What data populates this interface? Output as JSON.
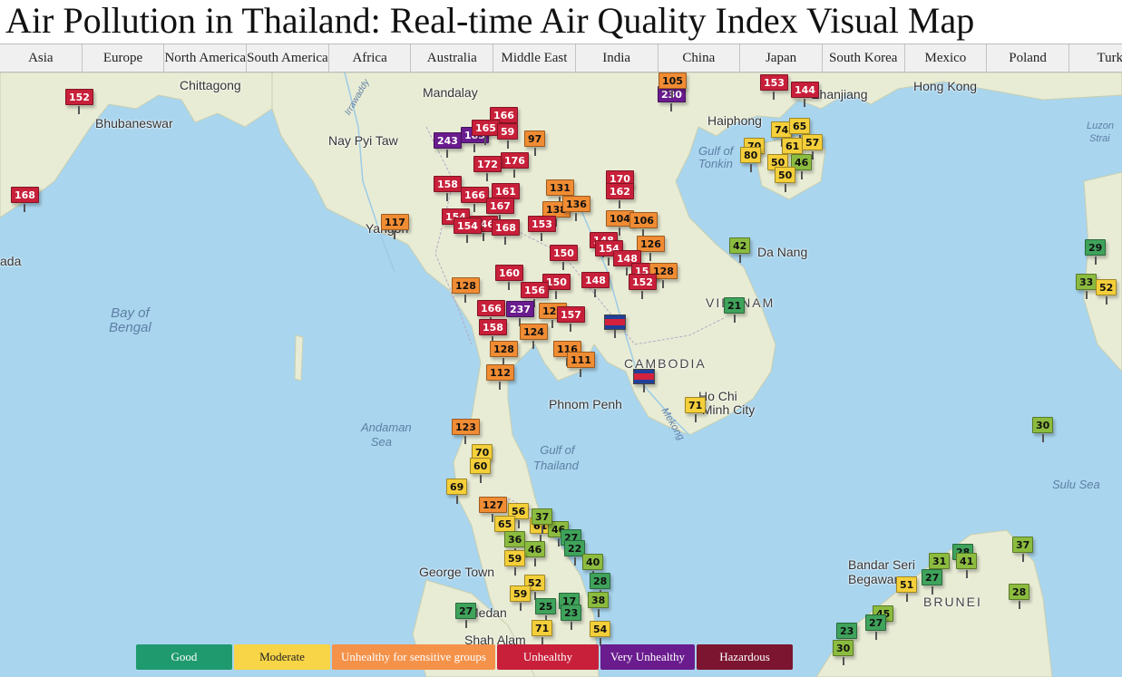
{
  "page_title": "Air Pollution in Thailand: Real-time Air Quality Index Visual Map",
  "region_tabs": [
    {
      "label": "Asia"
    },
    {
      "label": "Europe"
    },
    {
      "label": "North America"
    },
    {
      "label": "South America"
    },
    {
      "label": "Africa"
    },
    {
      "label": "Australia"
    },
    {
      "label": "Middle East"
    },
    {
      "label": "India"
    },
    {
      "label": "China"
    },
    {
      "label": "Japan"
    },
    {
      "label": "South Korea"
    },
    {
      "label": "Mexico"
    },
    {
      "label": "Poland"
    },
    {
      "label": "Turk"
    }
  ],
  "colors": {
    "good": "#3fa35b",
    "moderate": "#f4cf3a",
    "unhealthy_sensitive": "#f08c33",
    "unhealthy": "#c8203a",
    "very_unhealthy": "#6a1c8e",
    "hazardous": "#7c1530",
    "water": "#a9d5ee",
    "land": "#e9ecd6"
  },
  "place_labels": [
    {
      "text": "Chittagong",
      "kind": "city"
    },
    {
      "text": "Mandalay",
      "kind": "city"
    },
    {
      "text": "Bhubaneswar",
      "kind": "city"
    },
    {
      "text": "Nay Pyi Taw",
      "kind": "city"
    },
    {
      "text": "Yangon",
      "kind": "city"
    },
    {
      "text": "Haiphong",
      "kind": "city"
    },
    {
      "text": "Hong Kong",
      "kind": "city"
    },
    {
      "text": "Zhanjiang",
      "kind": "city"
    },
    {
      "text": "Da Nang",
      "kind": "city"
    },
    {
      "text": "VIETNAM",
      "kind": "country"
    },
    {
      "text": "CAMBODIA",
      "kind": "country"
    },
    {
      "text": "Phnom Penh",
      "kind": "city"
    },
    {
      "text": "Ho Chi Minh City",
      "kind": "city"
    },
    {
      "text": "George Town",
      "kind": "city"
    },
    {
      "text": "Medan",
      "kind": "city"
    },
    {
      "text": "Shah Alam",
      "kind": "city"
    },
    {
      "text": "Bandar Seri Begawan",
      "kind": "city"
    },
    {
      "text": "BRUNEI",
      "kind": "country"
    },
    {
      "text": "Bay of Bengal",
      "kind": "water"
    },
    {
      "text": "Andaman Sea",
      "kind": "water"
    },
    {
      "text": "Gulf of Thailand",
      "kind": "water"
    },
    {
      "text": "Gulf of Tonkin",
      "kind": "water"
    },
    {
      "text": "Sulu Sea",
      "kind": "water"
    },
    {
      "text": "Luzon Strait",
      "kind": "water"
    },
    {
      "text": "Irrawaddy",
      "kind": "water"
    },
    {
      "text": "Mekong",
      "kind": "water"
    },
    {
      "text": "ada",
      "kind": "city"
    }
  ],
  "aqi_markers": [
    {
      "value": "152",
      "level": "unhealthy"
    },
    {
      "value": "168",
      "level": "unhealthy"
    },
    {
      "value": "117",
      "level": "usg"
    },
    {
      "value": "243",
      "level": "very"
    },
    {
      "value": "185",
      "level": "very"
    },
    {
      "value": "166",
      "level": "unhealthy"
    },
    {
      "value": "165",
      "level": "unhealthy"
    },
    {
      "value": "59",
      "level": "unhealthy"
    },
    {
      "value": "97",
      "level": "usg"
    },
    {
      "value": "176",
      "level": "unhealthy"
    },
    {
      "value": "172",
      "level": "unhealthy"
    },
    {
      "value": "158",
      "level": "unhealthy"
    },
    {
      "value": "166",
      "level": "unhealthy"
    },
    {
      "value": "161",
      "level": "unhealthy"
    },
    {
      "value": "131",
      "level": "usg"
    },
    {
      "value": "170",
      "level": "unhealthy"
    },
    {
      "value": "162",
      "level": "unhealthy"
    },
    {
      "value": "154",
      "level": "unhealthy"
    },
    {
      "value": "167",
      "level": "unhealthy"
    },
    {
      "value": "138",
      "level": "usg"
    },
    {
      "value": "136",
      "level": "usg"
    },
    {
      "value": "153",
      "level": "unhealthy"
    },
    {
      "value": "146",
      "level": "unhealthy"
    },
    {
      "value": "154",
      "level": "unhealthy"
    },
    {
      "value": "168",
      "level": "unhealthy"
    },
    {
      "value": "104",
      "level": "usg"
    },
    {
      "value": "106",
      "level": "usg"
    },
    {
      "value": "126",
      "level": "usg"
    },
    {
      "value": "150",
      "level": "unhealthy"
    },
    {
      "value": "148",
      "level": "unhealthy"
    },
    {
      "value": "154",
      "level": "unhealthy"
    },
    {
      "value": "148",
      "level": "unhealthy"
    },
    {
      "value": "152",
      "level": "unhealthy"
    },
    {
      "value": "128",
      "level": "usg"
    },
    {
      "value": "160",
      "level": "unhealthy"
    },
    {
      "value": "150",
      "level": "unhealthy"
    },
    {
      "value": "148",
      "level": "unhealthy"
    },
    {
      "value": "152",
      "level": "unhealthy"
    },
    {
      "value": "128",
      "level": "usg"
    },
    {
      "value": "156",
      "level": "unhealthy"
    },
    {
      "value": "166",
      "level": "unhealthy"
    },
    {
      "value": "237",
      "level": "very"
    },
    {
      "value": "129",
      "level": "usg"
    },
    {
      "value": "157",
      "level": "unhealthy"
    },
    {
      "value": "158",
      "level": "unhealthy"
    },
    {
      "value": "124",
      "level": "usg"
    },
    {
      "value": "128",
      "level": "usg"
    },
    {
      "value": "116",
      "level": "usg"
    },
    {
      "value": "111",
      "level": "usg"
    },
    {
      "value": "112",
      "level": "usg"
    },
    {
      "value": "123",
      "level": "usg"
    },
    {
      "value": "70",
      "level": "moderate"
    },
    {
      "value": "60",
      "level": "moderate"
    },
    {
      "value": "69",
      "level": "moderate"
    },
    {
      "value": "127",
      "level": "usg"
    },
    {
      "value": "56",
      "level": "moderate"
    },
    {
      "value": "65",
      "level": "moderate"
    },
    {
      "value": "61",
      "level": "moderate"
    },
    {
      "value": "46",
      "level": "moderate-g"
    },
    {
      "value": "37",
      "level": "moderate-g"
    },
    {
      "value": "36",
      "level": "moderate-g"
    },
    {
      "value": "27",
      "level": "good"
    },
    {
      "value": "46",
      "level": "moderate-g"
    },
    {
      "value": "22",
      "level": "good"
    },
    {
      "value": "59",
      "level": "moderate"
    },
    {
      "value": "40",
      "level": "moderate-g"
    },
    {
      "value": "52",
      "level": "moderate"
    },
    {
      "value": "28",
      "level": "good"
    },
    {
      "value": "59",
      "level": "moderate"
    },
    {
      "value": "38",
      "level": "moderate-g"
    },
    {
      "value": "17",
      "level": "good"
    },
    {
      "value": "25",
      "level": "good"
    },
    {
      "value": "23",
      "level": "good"
    },
    {
      "value": "71",
      "level": "moderate"
    },
    {
      "value": "54",
      "level": "moderate"
    },
    {
      "value": "27",
      "level": "good"
    },
    {
      "value": "71",
      "level": "moderate"
    },
    {
      "value": "42",
      "level": "moderate-g"
    },
    {
      "value": "21",
      "level": "good"
    },
    {
      "value": "230",
      "level": "very"
    },
    {
      "value": "105",
      "level": "usg"
    },
    {
      "value": "153",
      "level": "unhealthy"
    },
    {
      "value": "144",
      "level": "unhealthy"
    },
    {
      "value": "74",
      "level": "moderate"
    },
    {
      "value": "65",
      "level": "moderate"
    },
    {
      "value": "70",
      "level": "moderate"
    },
    {
      "value": "61",
      "level": "moderate"
    },
    {
      "value": "57",
      "level": "moderate"
    },
    {
      "value": "80",
      "level": "moderate"
    },
    {
      "value": "50",
      "level": "moderate"
    },
    {
      "value": "46",
      "level": "moderate-g"
    },
    {
      "value": "50",
      "level": "moderate"
    },
    {
      "value": "29",
      "level": "good"
    },
    {
      "value": "33",
      "level": "moderate-g"
    },
    {
      "value": "52",
      "level": "moderate"
    },
    {
      "value": "30",
      "level": "moderate-g"
    },
    {
      "value": "37",
      "level": "moderate-g"
    },
    {
      "value": "28",
      "level": "good"
    },
    {
      "value": "31",
      "level": "moderate-g"
    },
    {
      "value": "41",
      "level": "moderate-g"
    },
    {
      "value": "51",
      "level": "moderate"
    },
    {
      "value": "27",
      "level": "good"
    },
    {
      "value": "28",
      "level": "moderate-g"
    },
    {
      "value": "45",
      "level": "moderate-g"
    },
    {
      "value": "27",
      "level": "good"
    },
    {
      "value": "23",
      "level": "good"
    },
    {
      "value": "30",
      "level": "moderate-g"
    }
  ],
  "flag_markers": [
    {
      "country": "cambodia"
    },
    {
      "country": "cambodia"
    }
  ],
  "legend": [
    {
      "label": "Good",
      "bg": "#1f9a6e",
      "fg": "#ffffff"
    },
    {
      "label": "Moderate",
      "bg": "#f7d547",
      "fg": "#222222"
    },
    {
      "label": "Unhealthy for sensitive groups",
      "bg": "#f4924a",
      "fg": "#ffffff"
    },
    {
      "label": "Unhealthy",
      "bg": "#c8203a",
      "fg": "#ffffff"
    },
    {
      "label": "Very Unhealthy",
      "bg": "#6a1c8e",
      "fg": "#ffffff"
    },
    {
      "label": "Hazardous",
      "bg": "#7c1530",
      "fg": "#ffffff"
    }
  ]
}
